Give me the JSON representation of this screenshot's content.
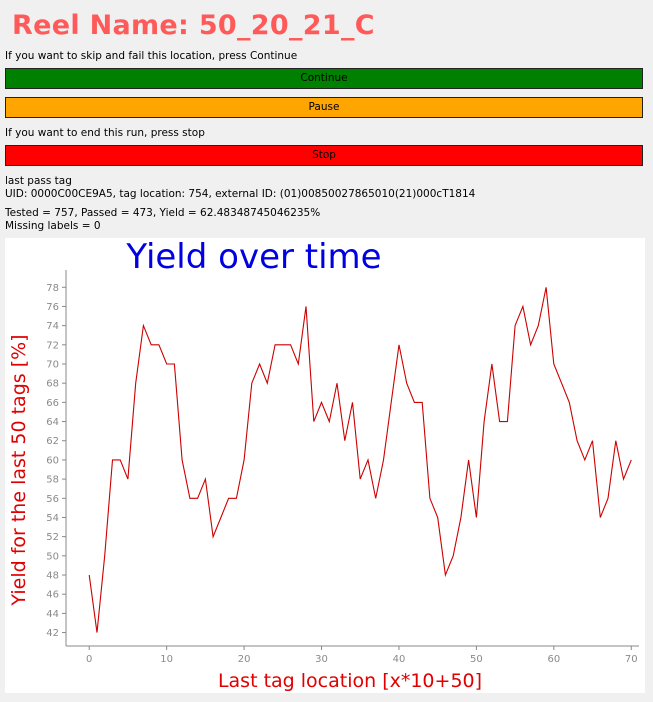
{
  "header": {
    "title": "Reel Name: 50_20_21_C"
  },
  "instructions": {
    "skip": "If you want to skip and fail this location, press Continue",
    "end": "If you want to end this run, press stop"
  },
  "buttons": {
    "continue": "Continue",
    "pause": "Pause",
    "stop": "Stop"
  },
  "colors": {
    "continue": "#008000",
    "pause": "#ffa500",
    "stop": "#ff0000",
    "title": "#ff5a5a",
    "plot_title": "#0000e0",
    "axis_label": "#e00000",
    "line": "#cc0000"
  },
  "status": {
    "last_pass_heading": "last pass tag",
    "uid_line": "UID: 0000C00CE9A5, tag location: 754, external ID: (01)00850027865010(21)000cT1814",
    "summary": "Tested = 757, Passed = 473, Yield = 62.48348745046235%",
    "missing": "Missing labels = 0"
  },
  "chart_data": {
    "type": "line",
    "title": "Yield over time",
    "xlabel": "Last tag location [x*10+50]",
    "ylabel": "Yield for the last 50 tags [%]",
    "xlim": [
      -3,
      71
    ],
    "ylim": [
      40.6,
      79.8
    ],
    "xticks": [
      "0",
      "10",
      "20",
      "30",
      "40",
      "50",
      "60",
      "70"
    ],
    "yticks": [
      "42",
      "44",
      "46",
      "48",
      "50",
      "52",
      "54",
      "56",
      "58",
      "60",
      "62",
      "64",
      "66",
      "68",
      "70",
      "72",
      "74",
      "76",
      "78"
    ],
    "grid": false,
    "series": [
      {
        "x": [
          0,
          1,
          2,
          3,
          4,
          5,
          6,
          7,
          8,
          9,
          10,
          11,
          12,
          13,
          14,
          15,
          16,
          17,
          18,
          19,
          20,
          21,
          22,
          23,
          24,
          25,
          26,
          27,
          28,
          29,
          30,
          31,
          32,
          33,
          34,
          35,
          36,
          37,
          38,
          39,
          40,
          41,
          42,
          43,
          44,
          45,
          46,
          47,
          48,
          49,
          50,
          51,
          52,
          53,
          54,
          55,
          56,
          57,
          58,
          59,
          60,
          61,
          62,
          63,
          64,
          65,
          66,
          67,
          68,
          69,
          70
        ],
        "values": [
          48,
          42,
          50,
          60,
          60,
          58,
          68,
          74,
          72,
          72,
          70,
          70,
          60,
          56,
          56,
          58,
          52,
          54,
          56,
          56,
          60,
          68,
          70,
          68,
          72,
          72,
          72,
          70,
          76,
          64,
          66,
          64,
          68,
          62,
          66,
          58,
          60,
          56,
          60,
          66,
          72,
          68,
          66,
          66,
          56,
          54,
          48,
          50,
          54,
          60,
          54,
          64,
          70,
          64,
          64,
          74,
          76,
          72,
          74,
          78,
          70,
          68,
          66,
          62,
          60,
          62,
          54,
          56,
          62,
          58,
          60
        ]
      }
    ]
  }
}
